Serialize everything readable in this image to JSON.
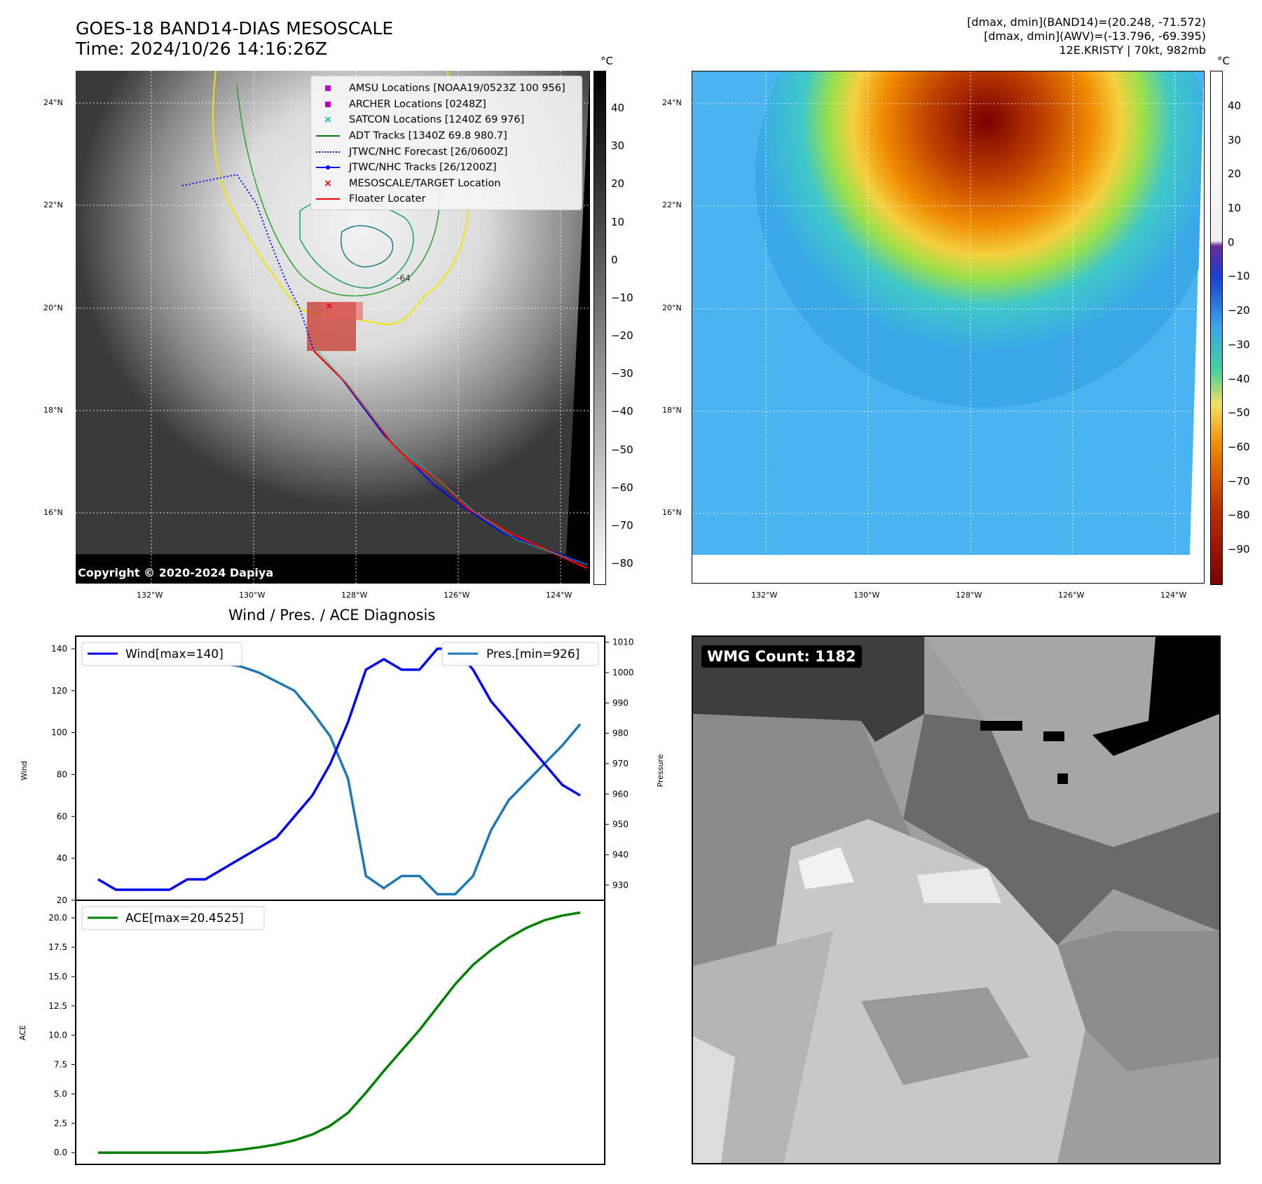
{
  "header": {
    "title_line1": "GOES-18 BAND14-DIAS MESOSCALE",
    "title_line2": "Time: 2024/10/26 14:16:26Z",
    "meta_line1": "[dmax, dmin](BAND14)=(20.248, -71.572)",
    "meta_line2": "[dmax, dmin](AWV)=(-13.796, -69.395)",
    "meta_line3": "12E.KRISTY | 70kt, 982mb"
  },
  "ir_panel": {
    "lat_labels": [
      "24°N",
      "22°N",
      "20°N",
      "18°N",
      "16°N"
    ],
    "lon_labels": [
      "132°W",
      "130°W",
      "128°W",
      "126°W",
      "124°W"
    ],
    "copyright": "Copyright © 2020-2024 Dapiya",
    "contour_label": "-64",
    "colorbar_unit": "°C",
    "colorbar_ticks": [
      "40",
      "30",
      "20",
      "10",
      "0",
      "−10",
      "−20",
      "−30",
      "−40",
      "−50",
      "−60",
      "−70",
      "−80"
    ],
    "legend": [
      {
        "label": "AMSU Locations [NOAA19/0523Z 100 956]",
        "color": "#c000c0",
        "marker": "square"
      },
      {
        "label": "ARCHER Locations [0248Z]",
        "color": "#c000c0",
        "marker": "square"
      },
      {
        "label": "SATCON Locations [1240Z 69 976]",
        "color": "#00c0c0",
        "marker": "x"
      },
      {
        "label": "ADT Tracks [1340Z 69.8 980.7]",
        "color": "#008000",
        "marker": "line"
      },
      {
        "label": "JTWC/NHC Forecast [26/0600Z]",
        "color": "#0000ff",
        "marker": "dotted"
      },
      {
        "label": "JTWC/NHC Tracks [26/1200Z]",
        "color": "#0000ff",
        "marker": "line-dot"
      },
      {
        "label": "MESOSCALE/TARGET Location",
        "color": "#ff0000",
        "marker": "x"
      },
      {
        "label": "Floater Locater",
        "color": "#ff0000",
        "marker": "line"
      }
    ]
  },
  "awv_panel": {
    "lat_labels": [
      "24°N",
      "22°N",
      "20°N",
      "18°N",
      "16°N"
    ],
    "lon_labels": [
      "132°W",
      "130°W",
      "128°W",
      "126°W",
      "124°W"
    ],
    "colorbar_unit": "°C",
    "colorbar_ticks": [
      "40",
      "30",
      "20",
      "10",
      "0",
      "−10",
      "−20",
      "−30",
      "−40",
      "−50",
      "−60",
      "−70",
      "−80",
      "−90"
    ]
  },
  "wmg_panel": {
    "badge": "WMG Count: 1182"
  },
  "colors": {
    "wind": "#0000ee",
    "pressure": "#1f77b4",
    "ace": "#008000"
  },
  "chart_data": [
    {
      "type": "line",
      "title": "Wind / Pres. / ACE Diagnosis",
      "x": [
        0,
        1,
        2,
        3,
        4,
        5,
        6,
        7,
        8,
        9,
        10,
        11,
        12,
        13,
        14,
        15,
        16,
        17,
        18,
        19,
        20,
        21,
        22,
        23,
        24,
        25,
        26,
        27
      ],
      "series": [
        {
          "name": "Wind[max=140]",
          "axis": "left",
          "values": [
            30,
            25,
            25,
            25,
            25,
            30,
            30,
            35,
            40,
            45,
            50,
            60,
            70,
            85,
            105,
            130,
            135,
            130,
            130,
            140,
            140,
            130,
            115,
            105,
            95,
            85,
            75,
            70
          ]
        },
        {
          "name": "Pres.[min=926]",
          "axis": "right",
          "values": [
            1005,
            1005,
            1006,
            1006,
            1006,
            1005,
            1004,
            1003,
            1002,
            1000,
            997,
            994,
            987,
            979,
            965,
            933,
            929,
            933,
            933,
            927,
            927,
            933,
            948,
            958,
            964,
            970,
            976,
            983
          ]
        }
      ],
      "ylabel": "Wind",
      "ylabel_right": "Pressure",
      "ylim": [
        20,
        146
      ],
      "ylim_right": [
        925,
        1012
      ],
      "yticks": [
        20,
        40,
        60,
        80,
        100,
        120,
        140
      ],
      "yticks_right": [
        930,
        940,
        950,
        960,
        970,
        980,
        990,
        1000,
        1010
      ]
    },
    {
      "type": "line",
      "title": "",
      "x": [
        0,
        1,
        2,
        3,
        4,
        5,
        6,
        7,
        8,
        9,
        10,
        11,
        12,
        13,
        14,
        15,
        16,
        17,
        18,
        19,
        20,
        21,
        22,
        23,
        24,
        25,
        26,
        27
      ],
      "series": [
        {
          "name": "ACE[max=20.4525]",
          "values": [
            0,
            0,
            0,
            0,
            0,
            0,
            0,
            0.1,
            0.25,
            0.45,
            0.7,
            1.05,
            1.55,
            2.3,
            3.4,
            5.1,
            6.95,
            8.7,
            10.45,
            12.4,
            14.35,
            16.0,
            17.25,
            18.3,
            19.15,
            19.8,
            20.2,
            20.45
          ]
        }
      ],
      "ylabel": "ACE",
      "ylim": [
        -1.0,
        21.5
      ],
      "yticks": [
        "0.0",
        "2.5",
        "5.0",
        "7.5",
        "10.0",
        "12.5",
        "15.0",
        "17.5",
        "20.0"
      ]
    }
  ]
}
